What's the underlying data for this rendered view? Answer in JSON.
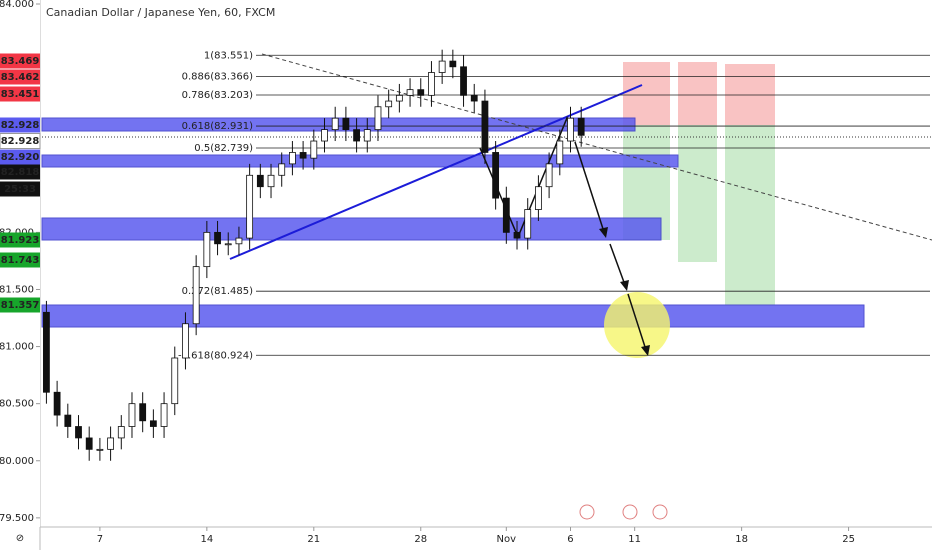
{
  "chart_data": {
    "type": "candlestick",
    "title": "Canadian Dollar / Japanese Yen, 60, FXCM",
    "x": [
      -2.5,
      -2,
      -1.5,
      -1,
      -0.5,
      0,
      0.5,
      1,
      1.5,
      2,
      2.5,
      3,
      3.5,
      4,
      4.5,
      5,
      5.5,
      6,
      6.5,
      7,
      7.5,
      8,
      8.5,
      9,
      9.5,
      10,
      10.5,
      11,
      11.5,
      12,
      12.5,
      13,
      13.5,
      14,
      14.5,
      15,
      15.5,
      16,
      16.5,
      17,
      17.5,
      18,
      18.5,
      19,
      19.5,
      20,
      20.5,
      21,
      21.5,
      22,
      22.5
    ],
    "open": [
      81.3,
      80.6,
      80.4,
      80.3,
      80.2,
      80.1,
      80.1,
      80.2,
      80.3,
      80.5,
      80.35,
      80.3,
      80.5,
      80.9,
      81.2,
      81.7,
      82.0,
      81.9,
      81.9,
      81.95,
      82.5,
      82.4,
      82.5,
      82.6,
      82.7,
      82.65,
      82.8,
      82.9,
      83.0,
      82.9,
      82.8,
      82.9,
      83.1,
      83.15,
      83.2,
      83.25,
      83.2,
      83.4,
      83.5,
      83.45,
      83.2,
      83.15,
      82.7,
      82.3,
      82.0,
      81.95,
      82.2,
      82.4,
      82.6,
      82.8,
      83.0
    ],
    "high": [
      81.4,
      80.7,
      80.5,
      80.4,
      80.3,
      80.2,
      80.3,
      80.4,
      80.6,
      80.6,
      80.45,
      80.6,
      81.0,
      81.3,
      81.8,
      82.1,
      82.1,
      82.0,
      82.05,
      82.6,
      82.6,
      82.6,
      82.7,
      82.8,
      82.8,
      82.9,
      83.0,
      83.1,
      83.1,
      83.0,
      83.0,
      83.2,
      83.25,
      83.3,
      83.35,
      83.35,
      83.5,
      83.6,
      83.6,
      83.55,
      83.3,
      83.25,
      82.8,
      82.4,
      82.1,
      82.3,
      82.5,
      82.7,
      82.9,
      83.1,
      83.1
    ],
    "low": [
      80.5,
      80.3,
      80.2,
      80.1,
      80.0,
      80.0,
      80.0,
      80.1,
      80.2,
      80.25,
      80.2,
      80.2,
      80.4,
      80.8,
      81.1,
      81.6,
      81.8,
      81.8,
      81.8,
      81.85,
      82.3,
      82.3,
      82.4,
      82.5,
      82.55,
      82.55,
      82.7,
      82.8,
      82.8,
      82.7,
      82.7,
      82.8,
      83.0,
      83.05,
      83.1,
      83.1,
      83.1,
      83.3,
      83.35,
      83.1,
      83.05,
      82.6,
      82.2,
      81.9,
      81.85,
      81.85,
      82.1,
      82.3,
      82.5,
      82.7,
      82.75
    ],
    "close": [
      80.6,
      80.4,
      80.3,
      80.2,
      80.1,
      80.1,
      80.2,
      80.3,
      80.5,
      80.35,
      80.3,
      80.5,
      80.9,
      81.2,
      81.7,
      82.0,
      81.9,
      81.9,
      81.95,
      82.5,
      82.4,
      82.5,
      82.6,
      82.7,
      82.65,
      82.8,
      82.9,
      83.0,
      82.9,
      82.8,
      82.9,
      83.1,
      83.15,
      83.2,
      83.25,
      83.2,
      83.4,
      83.5,
      83.45,
      83.2,
      83.15,
      82.7,
      82.3,
      82.0,
      81.95,
      82.2,
      82.4,
      82.6,
      82.8,
      83.0,
      82.85
    ],
    "up_color": "#ffffff",
    "down_color": "#111111",
    "xlim": [
      -2.8,
      38.9
    ],
    "xticks": [
      {
        "value": 0,
        "label": "7"
      },
      {
        "value": 5,
        "label": "14"
      },
      {
        "value": 10,
        "label": "21"
      },
      {
        "value": 15,
        "label": "28"
      },
      {
        "value": 19,
        "label": "Nov"
      },
      {
        "value": 22,
        "label": "6"
      },
      {
        "value": 25,
        "label": "11"
      },
      {
        "value": 30,
        "label": "18"
      },
      {
        "value": 35,
        "label": "25"
      }
    ],
    "ylim": [
      79.42,
      84.035
    ],
    "yticks": [
      {
        "value": 84,
        "label": "84.000"
      },
      {
        "value": 82,
        "label": "82.000"
      },
      {
        "value": 81.5,
        "label": "81.500"
      },
      {
        "value": 81,
        "label": "81.000"
      },
      {
        "value": 80.5,
        "label": "80.500"
      },
      {
        "value": 80,
        "label": "80.000"
      },
      {
        "value": 79.5,
        "label": "79.500"
      }
    ],
    "fib_levels": [
      {
        "value": 83.551,
        "label": "1(83.551)"
      },
      {
        "value": 83.366,
        "label": "0.886(83.366)"
      },
      {
        "value": 83.203,
        "label": "0.786(83.203)"
      },
      {
        "value": 82.931,
        "label": "0.618(82.931)"
      },
      {
        "value": 82.739,
        "label": "0.5(82.739)"
      },
      {
        "value": 81.485,
        "label": "0.272(81.485)"
      },
      {
        "value": 80.924,
        "label": "-0.618(80.924)"
      }
    ],
    "price_badges": [
      {
        "label": "83.469",
        "color": "#f23645"
      },
      {
        "label": "83.462",
        "color": "#f23645"
      },
      {
        "label": "83.451",
        "color": "#f23645"
      },
      {
        "label": "82.928",
        "color": "#5b5bef"
      },
      {
        "label": "82.928",
        "color": "#ffffff"
      },
      {
        "label": "82.920",
        "color": "#5b5bef"
      },
      {
        "label": "82.818",
        "color": "#111111"
      },
      {
        "label": "25:33",
        "color": "#111111"
      },
      {
        "label": "81.923",
        "color": "#17a52b"
      },
      {
        "label": "81.743",
        "color": "#17a52b"
      },
      {
        "label": "81.357",
        "color": "#17a52b"
      }
    ]
  }
}
